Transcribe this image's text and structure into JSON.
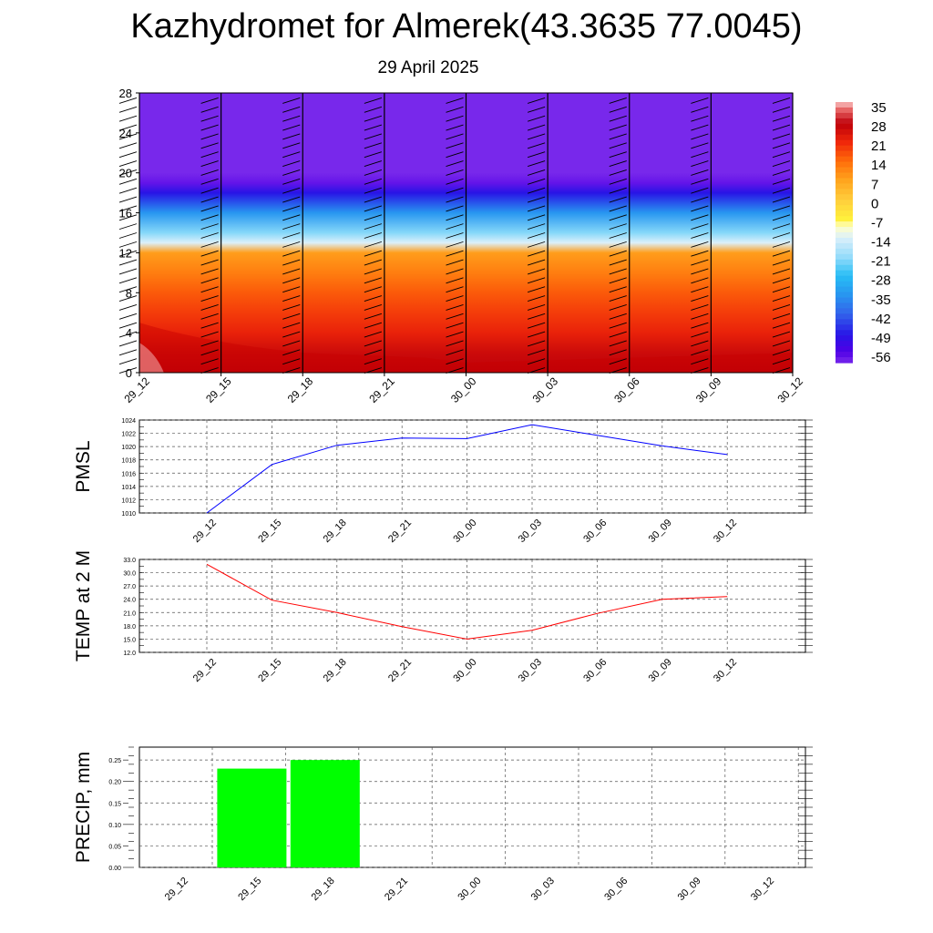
{
  "title": "Kazhydromet for Almerek(43.3635 77.0045)",
  "subtitle": "29 April 2025",
  "time_labels": [
    "29_12",
    "29_15",
    "29_18",
    "29_21",
    "30_00",
    "30_03",
    "30_06",
    "30_09",
    "30_12"
  ],
  "chart_data": [
    {
      "type": "heatmap",
      "x": [
        "29_12",
        "29_15",
        "29_18",
        "29_21",
        "30_00",
        "30_03",
        "30_06",
        "30_09",
        "30_12"
      ],
      "y_ticks": [
        0,
        4,
        8,
        12,
        16,
        20,
        24,
        28
      ],
      "ylim": [
        0,
        28
      ],
      "colorbar": {
        "labels": [
          "35",
          "28",
          "21",
          "14",
          "7",
          "0",
          "-7",
          "-14",
          "-21",
          "-28",
          "-35",
          "-42",
          "-49",
          "-56"
        ],
        "range": [
          -60,
          36
        ]
      },
      "note_levels": [
        {
          "y": 0,
          "value": 28
        },
        {
          "y": 2,
          "value": 26
        },
        {
          "y": 4,
          "value": 22
        },
        {
          "y": 6,
          "value": 19
        },
        {
          "y": 8,
          "value": 16
        },
        {
          "y": 10,
          "value": 12
        },
        {
          "y": 12,
          "value": 8
        },
        {
          "y": 13,
          "value": -14
        },
        {
          "y": 14,
          "value": -22
        },
        {
          "y": 16,
          "value": -35
        },
        {
          "y": 18,
          "value": -50
        },
        {
          "y": 19,
          "value": -58
        },
        {
          "y": 20,
          "value": -60
        },
        {
          "y": 28,
          "value": -60
        }
      ],
      "wind_barbs": true
    },
    {
      "type": "line",
      "ylabel": "PMSL",
      "x": [
        "29_12",
        "29_15",
        "29_18",
        "29_21",
        "30_00",
        "30_03",
        "30_06",
        "30_09",
        "30_12"
      ],
      "y": [
        1010.0,
        1017.3,
        1020.2,
        1021.3,
        1021.2,
        1023.3,
        1021.7,
        1020.1,
        1018.8
      ],
      "ylim": [
        1010,
        1024
      ],
      "y_ticks": [
        "1010",
        "1012",
        "1014",
        "1016",
        "1018",
        "1020",
        "1022",
        "1024"
      ],
      "color": "#0000ff",
      "grid": true
    },
    {
      "type": "line",
      "ylabel": "TEMP at 2 M",
      "x": [
        "29_12",
        "29_15",
        "29_18",
        "29_21",
        "30_00",
        "30_03",
        "30_06",
        "30_09",
        "30_12"
      ],
      "y": [
        31.9,
        23.8,
        21.0,
        17.8,
        15.0,
        17.0,
        20.8,
        24.0,
        24.6
      ],
      "ylim": [
        12,
        33
      ],
      "y_ticks": [
        "12.0",
        "15.0",
        "18.0",
        "21.0",
        "24.0",
        "27.0",
        "30.0",
        "33.0"
      ],
      "color": "#ff0000",
      "grid": true
    },
    {
      "type": "bar",
      "ylabel": "PRECIP, mm",
      "categories": [
        "29_12",
        "29_15",
        "29_18",
        "29_21",
        "30_00",
        "30_03",
        "30_06",
        "30_09",
        "30_12"
      ],
      "values": [
        0,
        0.23,
        0.25,
        0,
        0,
        0,
        0,
        0,
        0
      ],
      "ylim": [
        0,
        0.28
      ],
      "y_ticks": [
        "0.00",
        "0.05",
        "0.10",
        "0.15",
        "0.20",
        "0.25"
      ],
      "color": "#00ff00",
      "grid": true
    }
  ]
}
